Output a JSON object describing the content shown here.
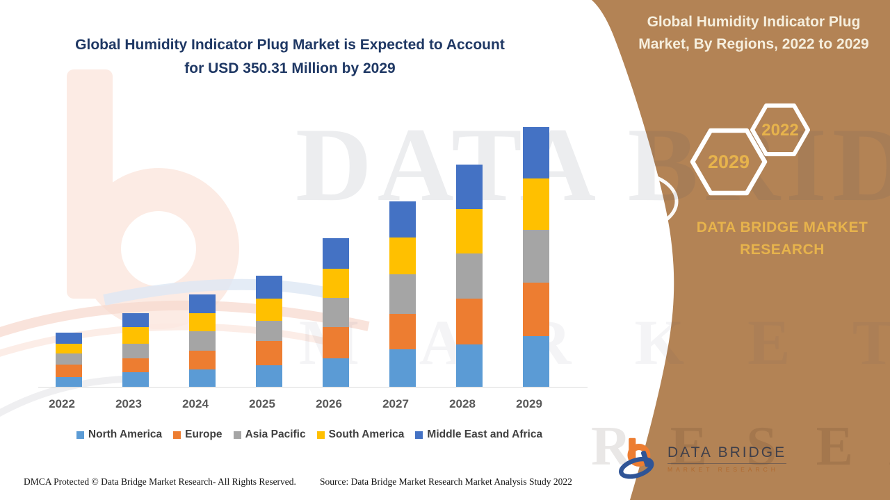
{
  "page": {
    "main_title_line1": "Global Humidity Indicator Plug Market is Expected to Account",
    "main_title_line2": "for USD 350.31 Million by 2029"
  },
  "side_panel": {
    "title": "Global Humidity Indicator Plug Market, By Regions, 2022 to 2029",
    "hexagon_back_year": "2022",
    "hexagon_front_year": "2029",
    "brand_text": "DATA BRIDGE MARKET RESEARCH",
    "colors": {
      "background": "#B38355",
      "accent_gold": "#E7B34C",
      "hexagon_stroke": "#FFFFFF"
    }
  },
  "logo": {
    "name": "DATA BRIDGE",
    "subtitle": "MARKET RESEARCH"
  },
  "watermark": {
    "line1": "DATA BRIDGE",
    "line2_left": "M A R K E T",
    "line2_right": "R E S E A R C H"
  },
  "footer": {
    "dmca": "DMCA Protected © Data Bridge Market Research- All Rights Reserved.",
    "source": "Source: Data Bridge Market Research Market Analysis Study 2022"
  },
  "chart_data": {
    "type": "bar",
    "stacked": true,
    "title": "Global Humidity Indicator Plug Market is Expected to Account for USD 350.31 Million by 2029",
    "unit": "USD Million",
    "values_estimated_from_pixels": true,
    "categories": [
      "2022",
      "2023",
      "2024",
      "2025",
      "2026",
      "2027",
      "2028",
      "2029"
    ],
    "series": [
      {
        "name": "North America",
        "color": "#5B9BD5",
        "values": [
          13.1,
          19.7,
          23.4,
          29.0,
          38.4,
          50.6,
          57.1,
          68.4
        ]
      },
      {
        "name": "Europe",
        "color": "#ED7D31",
        "values": [
          16.9,
          18.7,
          25.3,
          32.8,
          42.1,
          47.8,
          61.8,
          72.1
        ]
      },
      {
        "name": "Asia Pacific",
        "color": "#A5A5A5",
        "values": [
          15.0,
          19.7,
          26.2,
          27.2,
          39.3,
          53.4,
          60.9,
          71.2
        ]
      },
      {
        "name": "South America",
        "color": "#FFC000",
        "values": [
          13.1,
          22.5,
          24.4,
          30.0,
          39.3,
          49.6,
          59.9,
          69.3
        ]
      },
      {
        "name": "Middle East and Africa",
        "color": "#4472C4",
        "values": [
          15.0,
          18.7,
          25.3,
          30.9,
          41.2,
          48.7,
          59.9,
          69.3
        ]
      }
    ],
    "stack_totals": [
      73.1,
      99.3,
      124.6,
      149.9,
      200.3,
      250.1,
      299.6,
      350.3
    ],
    "ylim": [
      0,
      360
    ],
    "xlabel": "",
    "ylabel": "",
    "gridlines": false,
    "y_axis_shown": false,
    "legend_position": "bottom"
  }
}
